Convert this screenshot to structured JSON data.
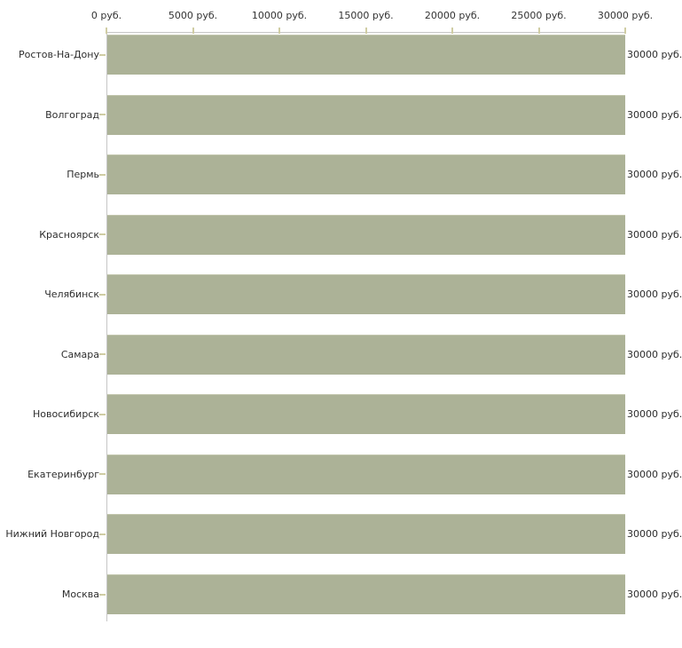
{
  "chart_data": {
    "type": "bar",
    "orientation": "horizontal",
    "title": "",
    "xlabel": "",
    "ylabel": "",
    "categories": [
      "Ростов-На-Дону",
      "Волгоград",
      "Пермь",
      "Красноярск",
      "Челябинск",
      "Самара",
      "Новосибирск",
      "Екатеринбург",
      "Нижний Новгород",
      "Москва"
    ],
    "values": [
      30000,
      30000,
      30000,
      30000,
      30000,
      30000,
      30000,
      30000,
      30000,
      30000
    ],
    "value_label": "30000 руб.",
    "x_tick_labels": [
      "0 руб.",
      "5000 руб.",
      "10000 руб.",
      "15000 руб.",
      "20000 руб.",
      "25000 руб.",
      "30000 руб."
    ],
    "x_tick_values": [
      0,
      5000,
      10000,
      15000,
      20000,
      25000,
      30000
    ],
    "xlim": [
      0,
      30000
    ],
    "grid": "off",
    "legend": "none",
    "colors": {
      "bar": "#acb297",
      "bar_top_edge": "#c2c6ad",
      "axis_line": "#c6c6c6",
      "tick_mark": "#d0cda4",
      "text": "#2d2d2d",
      "background": "#ffffff"
    }
  }
}
